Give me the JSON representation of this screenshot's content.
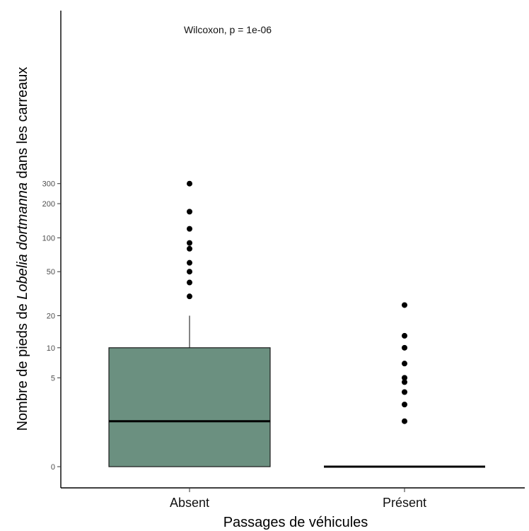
{
  "chart_data": {
    "type": "boxplot",
    "title": "",
    "xlabel": "Passages de véhicules",
    "ylabel_parts": [
      "Nombre de pieds de ",
      "Lobelia dortmanna",
      " dans les carreaux"
    ],
    "categories": [
      "Absent",
      "Présent"
    ],
    "y_scale": "log1p",
    "ylim": [
      0,
      500
    ],
    "y_ticks": [
      0,
      5,
      10,
      20,
      50,
      100,
      200,
      300
    ],
    "y_tick_labels": [
      "0",
      "5",
      "10",
      "20",
      "50",
      "100",
      "200",
      "300"
    ],
    "grid": false,
    "legend": "none",
    "annotation": "Wilcoxon, p = 1e-06",
    "fill_colors": [
      "#6b9080",
      "#ffffff"
    ],
    "boxes": [
      {
        "category": "Absent",
        "min": 0,
        "q1": 0,
        "median": 1.5,
        "q3": 10,
        "max": 20,
        "outliers": [
          30,
          40,
          50,
          60,
          80,
          90,
          120,
          170,
          300
        ]
      },
      {
        "category": "Présent",
        "min": 0,
        "q1": 0,
        "median": 0,
        "q3": 0,
        "max": 0,
        "outliers": [
          1.5,
          2.5,
          3.5,
          4.5,
          5,
          7,
          10,
          13,
          25
        ]
      }
    ]
  }
}
